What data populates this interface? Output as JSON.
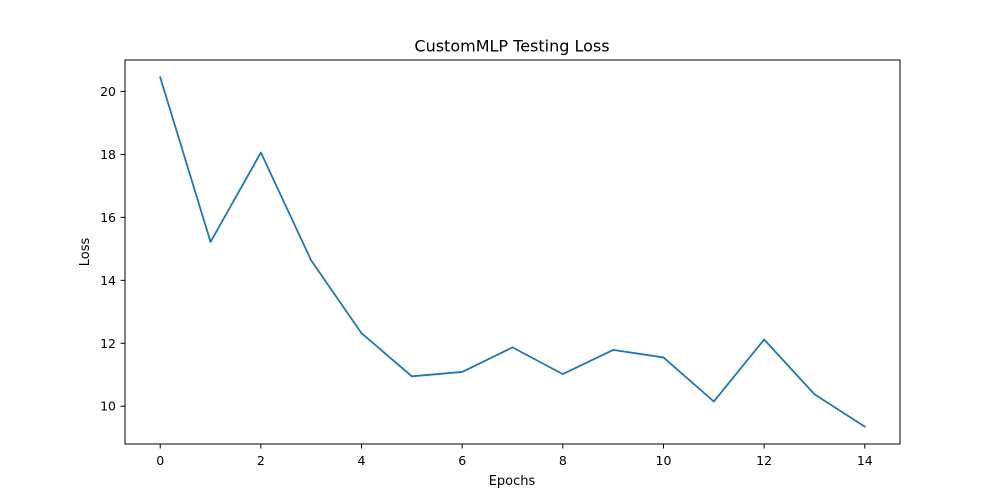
{
  "chart_data": {
    "type": "line",
    "title": "CustomMLP Testing Loss",
    "xlabel": "Epochs",
    "ylabel": "Loss",
    "xlim": [
      -0.7,
      14.7
    ],
    "ylim": [
      8.8,
      21.0
    ],
    "xticks": [
      0,
      2,
      4,
      6,
      8,
      10,
      12,
      14
    ],
    "yticks": [
      10,
      12,
      14,
      16,
      18,
      20
    ],
    "grid": false,
    "legend": "none",
    "series": [
      {
        "color": "#1f77b4",
        "x": [
          0,
          1,
          2,
          3,
          4,
          5,
          6,
          7,
          8,
          9,
          10,
          11,
          12,
          13,
          14
        ],
        "y": [
          20.45,
          15.22,
          18.06,
          14.63,
          12.32,
          10.95,
          11.09,
          11.87,
          11.02,
          11.79,
          11.55,
          10.15,
          12.12,
          10.38,
          9.35
        ]
      }
    ]
  }
}
